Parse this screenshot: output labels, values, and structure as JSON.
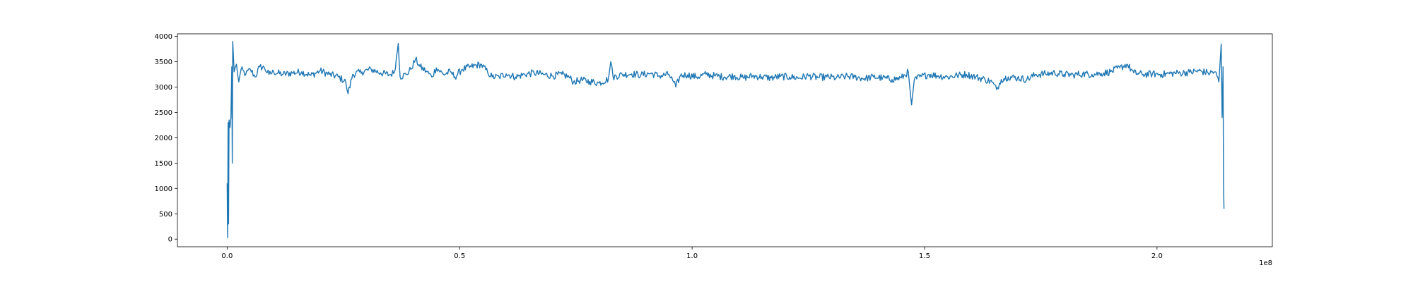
{
  "chart_data": {
    "type": "line",
    "title": "",
    "xlabel": "",
    "ylabel": "",
    "x_offset_text": "1e8",
    "xlim": [
      -10700000,
      224800000
    ],
    "ylim": [
      -150,
      4050
    ],
    "grid": false,
    "legend": "none",
    "x_ticks": [
      {
        "value": 0,
        "label": "0.0"
      },
      {
        "value": 50000000,
        "label": "0.5"
      },
      {
        "value": 100000000,
        "label": "1.0"
      },
      {
        "value": 150000000,
        "label": "1.5"
      },
      {
        "value": 200000000,
        "label": "2.0"
      }
    ],
    "y_ticks": [
      {
        "value": 0,
        "label": "0"
      },
      {
        "value": 500,
        "label": "500"
      },
      {
        "value": 1000,
        "label": "1000"
      },
      {
        "value": 1500,
        "label": "1500"
      },
      {
        "value": 2000,
        "label": "2000"
      },
      {
        "value": 2500,
        "label": "2500"
      },
      {
        "value": 3000,
        "label": "3000"
      },
      {
        "value": 3500,
        "label": "3500"
      },
      {
        "value": 4000,
        "label": "4000"
      }
    ],
    "colors": {
      "series": "#1f77b4"
    },
    "series": [
      {
        "points": [
          [
            0,
            1100
          ],
          [
            100000,
            30
          ],
          [
            200000,
            2300
          ],
          [
            300000,
            300
          ],
          [
            400000,
            2350
          ],
          [
            600000,
            2200
          ],
          [
            800000,
            2400
          ],
          [
            1000000,
            3400
          ],
          [
            1100000,
            1500
          ],
          [
            1200000,
            3900
          ],
          [
            1500000,
            3300
          ],
          [
            2000000,
            3450
          ],
          [
            2500000,
            3100
          ],
          [
            3000000,
            3350
          ],
          [
            4000000,
            3250
          ],
          [
            5000000,
            3350
          ],
          [
            6000000,
            3200
          ],
          [
            7000000,
            3400
          ],
          [
            8000000,
            3380
          ],
          [
            9000000,
            3250
          ],
          [
            10000000,
            3300
          ],
          [
            12000000,
            3250
          ],
          [
            14000000,
            3280
          ],
          [
            16000000,
            3300
          ],
          [
            18000000,
            3230
          ],
          [
            20000000,
            3320
          ],
          [
            22000000,
            3250
          ],
          [
            24000000,
            3200
          ],
          [
            25500000,
            3100
          ],
          [
            26000000,
            2870
          ],
          [
            27000000,
            3250
          ],
          [
            29000000,
            3300
          ],
          [
            31000000,
            3350
          ],
          [
            33000000,
            3280
          ],
          [
            35000000,
            3240
          ],
          [
            36000000,
            3300
          ],
          [
            36800000,
            3860
          ],
          [
            37200000,
            3200
          ],
          [
            38500000,
            3250
          ],
          [
            39500000,
            3350
          ],
          [
            40500000,
            3550
          ],
          [
            41500000,
            3400
          ],
          [
            43000000,
            3300
          ],
          [
            44000000,
            3200
          ],
          [
            45000000,
            3380
          ],
          [
            46500000,
            3250
          ],
          [
            48000000,
            3300
          ],
          [
            49000000,
            3200
          ],
          [
            50500000,
            3350
          ],
          [
            52500000,
            3400
          ],
          [
            54500000,
            3450
          ],
          [
            56000000,
            3300
          ],
          [
            57000000,
            3200
          ],
          [
            58500000,
            3200
          ],
          [
            60000000,
            3260
          ],
          [
            62000000,
            3200
          ],
          [
            64000000,
            3250
          ],
          [
            66000000,
            3280
          ],
          [
            68000000,
            3250
          ],
          [
            70000000,
            3220
          ],
          [
            72000000,
            3250
          ],
          [
            73500000,
            3200
          ],
          [
            74500000,
            3100
          ],
          [
            76000000,
            3140
          ],
          [
            78000000,
            3110
          ],
          [
            80000000,
            3080
          ],
          [
            82000000,
            3160
          ],
          [
            82500000,
            3500
          ],
          [
            83000000,
            3200
          ],
          [
            85000000,
            3250
          ],
          [
            87000000,
            3260
          ],
          [
            89000000,
            3240
          ],
          [
            91000000,
            3270
          ],
          [
            93000000,
            3220
          ],
          [
            95000000,
            3250
          ],
          [
            96000000,
            3100
          ],
          [
            96500000,
            3000
          ],
          [
            97500000,
            3230
          ],
          [
            99000000,
            3240
          ],
          [
            101000000,
            3200
          ],
          [
            103000000,
            3250
          ],
          [
            105000000,
            3220
          ],
          [
            107000000,
            3200
          ],
          [
            109000000,
            3220
          ],
          [
            111000000,
            3180
          ],
          [
            113000000,
            3220
          ],
          [
            115000000,
            3200
          ],
          [
            117000000,
            3180
          ],
          [
            119000000,
            3210
          ],
          [
            121000000,
            3200
          ],
          [
            123000000,
            3180
          ],
          [
            125000000,
            3220
          ],
          [
            127000000,
            3190
          ],
          [
            129000000,
            3200
          ],
          [
            131000000,
            3180
          ],
          [
            133000000,
            3210
          ],
          [
            135000000,
            3200
          ],
          [
            137000000,
            3170
          ],
          [
            139000000,
            3200
          ],
          [
            141000000,
            3180
          ],
          [
            143000000,
            3150
          ],
          [
            145000000,
            3180
          ],
          [
            146500000,
            3300
          ],
          [
            147200000,
            2650
          ],
          [
            147800000,
            3150
          ],
          [
            149000000,
            3200
          ],
          [
            151000000,
            3250
          ],
          [
            153000000,
            3220
          ],
          [
            155000000,
            3200
          ],
          [
            157000000,
            3230
          ],
          [
            159000000,
            3250
          ],
          [
            161000000,
            3200
          ],
          [
            163000000,
            3150
          ],
          [
            164500000,
            3100
          ],
          [
            165500000,
            2950
          ],
          [
            166500000,
            3150
          ],
          [
            168000000,
            3200
          ],
          [
            170000000,
            3180
          ],
          [
            172000000,
            3150
          ],
          [
            174000000,
            3250
          ],
          [
            176000000,
            3260
          ],
          [
            178000000,
            3280
          ],
          [
            180000000,
            3250
          ],
          [
            182000000,
            3240
          ],
          [
            184000000,
            3260
          ],
          [
            186000000,
            3250
          ],
          [
            188000000,
            3270
          ],
          [
            190000000,
            3300
          ],
          [
            192000000,
            3380
          ],
          [
            193500000,
            3450
          ],
          [
            195000000,
            3280
          ],
          [
            197000000,
            3250
          ],
          [
            199000000,
            3260
          ],
          [
            201000000,
            3250
          ],
          [
            203000000,
            3270
          ],
          [
            205000000,
            3280
          ],
          [
            207000000,
            3290
          ],
          [
            209000000,
            3320
          ],
          [
            211000000,
            3280
          ],
          [
            212500000,
            3300
          ],
          [
            213300000,
            3100
          ],
          [
            213800000,
            3850
          ],
          [
            214000000,
            2400
          ],
          [
            214200000,
            3400
          ],
          [
            214300000,
            1100
          ],
          [
            214400000,
            600
          ]
        ]
      }
    ]
  }
}
